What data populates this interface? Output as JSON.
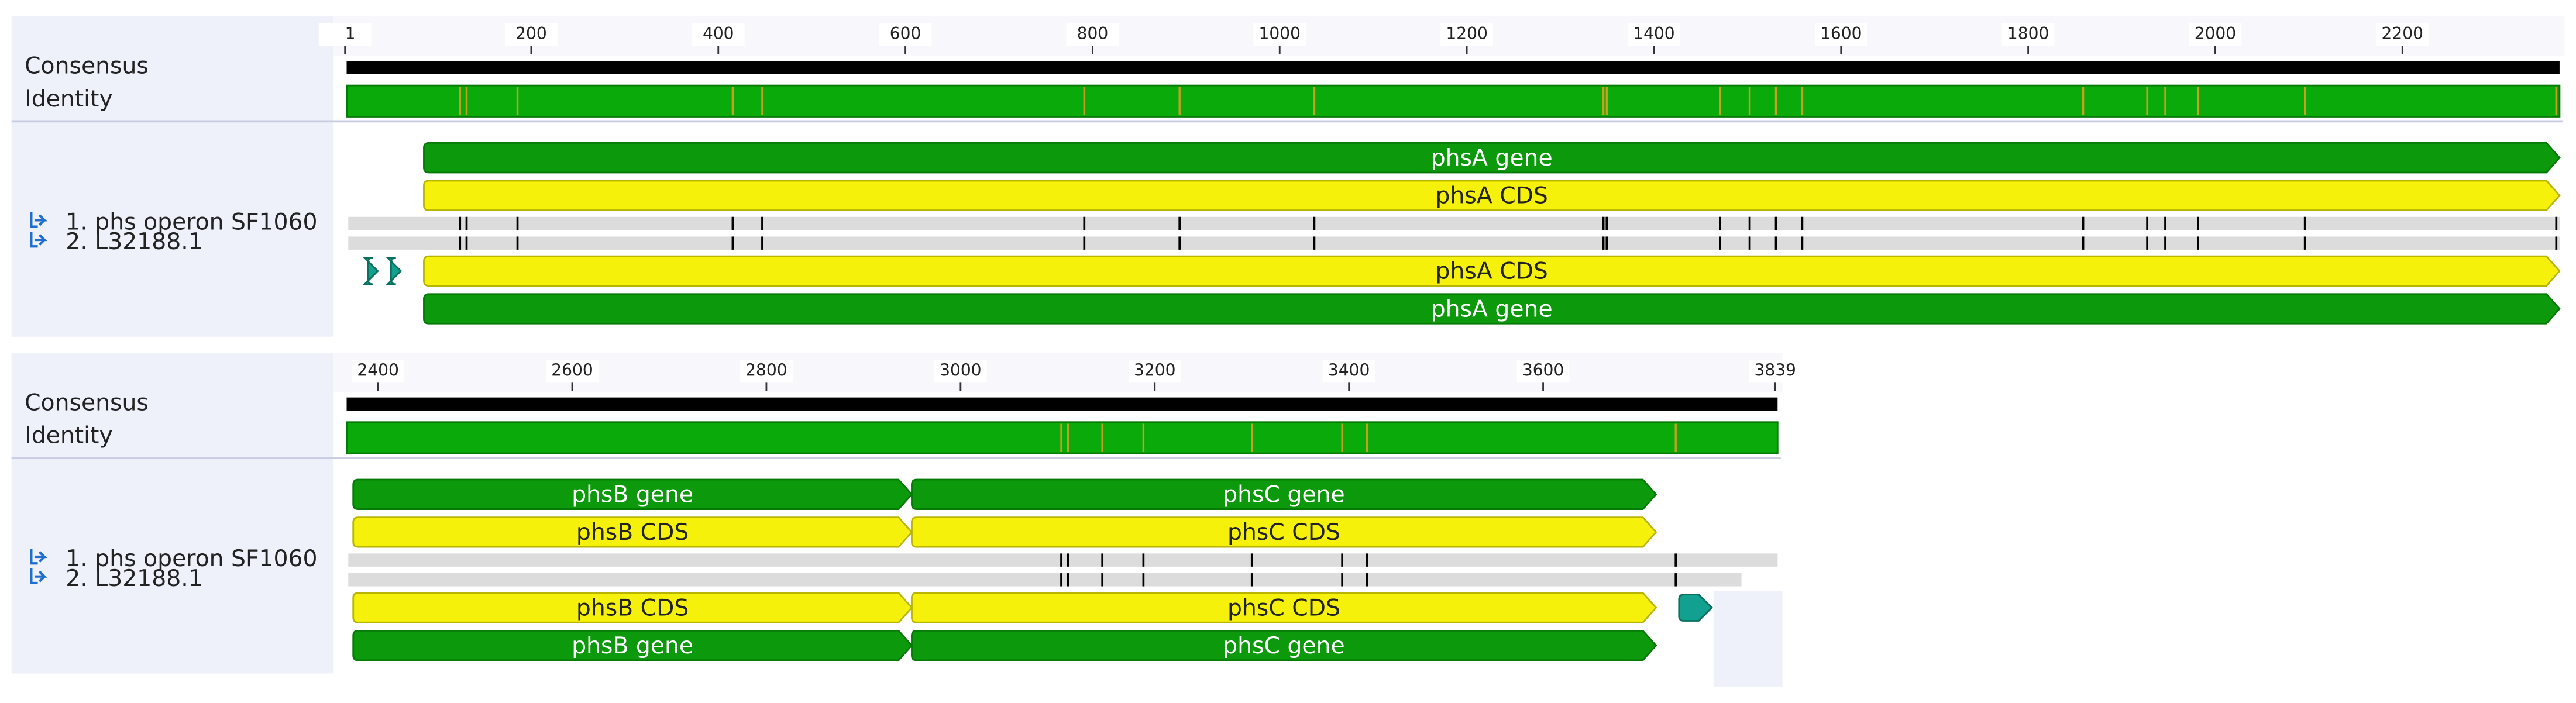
{
  "panels": [
    {
      "ruler": [
        1,
        200,
        400,
        600,
        800,
        1000,
        1200,
        1400,
        1600,
        1800,
        2000,
        2200
      ],
      "tracks": {
        "consensus": "Consensus",
        "identity": "Identity"
      },
      "sequences": [
        "1. phs operon  SF1060",
        "2. L32188.1"
      ],
      "top_features": [
        {
          "label": "phsA gene"
        },
        {
          "label": "phsA CDS"
        }
      ],
      "bottom_features": [
        {
          "label": "phsA CDS"
        },
        {
          "label": "phsA gene"
        }
      ]
    },
    {
      "ruler": [
        2400,
        2600,
        2800,
        3000,
        3200,
        3400,
        3600,
        3839
      ],
      "tracks": {
        "consensus": "Consensus",
        "identity": "Identity"
      },
      "sequences": [
        "1. phs operon  SF1060",
        "2. L32188.1"
      ],
      "top_features": [
        {
          "label": "phsB gene"
        },
        {
          "label": "phsC gene"
        },
        {
          "label": "phsB CDS"
        },
        {
          "label": "phsC CDS"
        }
      ],
      "bottom_features": [
        {
          "label": "phsB CDS"
        },
        {
          "label": "phsC CDS"
        },
        {
          "label": "phsB gene"
        },
        {
          "label": "phsC gene"
        }
      ]
    }
  ]
}
